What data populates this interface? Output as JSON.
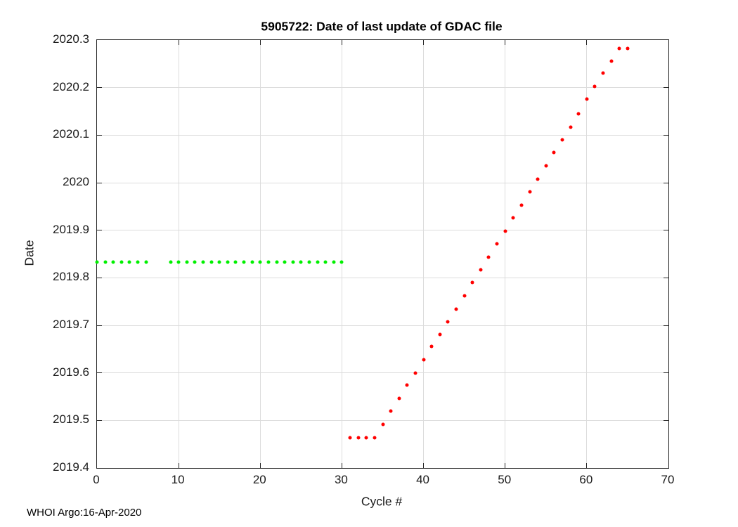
{
  "figure": {
    "footer": "WHOI Argo:16-Apr-2020"
  },
  "chart_data": {
    "type": "scatter",
    "title": "5905722: Date of last update of GDAC file",
    "xlabel": "Cycle #",
    "ylabel": "Date",
    "xlim": [
      0,
      70
    ],
    "ylim": [
      2019.4,
      2020.3
    ],
    "xticks": [
      0,
      10,
      20,
      30,
      40,
      50,
      60,
      70
    ],
    "xtick_labels": [
      "0",
      "10",
      "20",
      "30",
      "40",
      "50",
      "60",
      "70"
    ],
    "yticks": [
      2019.4,
      2019.5,
      2019.6,
      2019.7,
      2019.8,
      2019.9,
      2020.0,
      2020.1,
      2020.2,
      2020.3
    ],
    "ytick_labels": [
      "2019.4",
      "2019.5",
      "2019.6",
      "2019.7",
      "2019.8",
      "2019.9",
      "2020",
      "2020.1",
      "2020.2",
      "2020.3"
    ],
    "grid": true,
    "legend": "none",
    "marker": "dot",
    "series": [
      {
        "name": "green-dots",
        "color": "#00f000",
        "points": [
          [
            0,
            2019.833
          ],
          [
            1,
            2019.833
          ],
          [
            2,
            2019.833
          ],
          [
            3,
            2019.833
          ],
          [
            4,
            2019.833
          ],
          [
            5,
            2019.833
          ],
          [
            6,
            2019.833
          ],
          [
            9,
            2019.833
          ],
          [
            10,
            2019.833
          ],
          [
            11,
            2019.833
          ],
          [
            12,
            2019.833
          ],
          [
            13,
            2019.833
          ],
          [
            14,
            2019.833
          ],
          [
            15,
            2019.833
          ],
          [
            16,
            2019.833
          ],
          [
            17,
            2019.833
          ],
          [
            18,
            2019.833
          ],
          [
            19,
            2019.833
          ],
          [
            20,
            2019.833
          ],
          [
            21,
            2019.833
          ],
          [
            22,
            2019.833
          ],
          [
            23,
            2019.833
          ],
          [
            24,
            2019.833
          ],
          [
            25,
            2019.833
          ],
          [
            26,
            2019.833
          ],
          [
            27,
            2019.833
          ],
          [
            28,
            2019.833
          ],
          [
            29,
            2019.833
          ],
          [
            30,
            2019.833
          ]
        ]
      },
      {
        "name": "red-dots",
        "color": "#ff0000",
        "points": [
          [
            31,
            2019.464
          ],
          [
            32,
            2019.464
          ],
          [
            33,
            2019.464
          ],
          [
            34,
            2019.464
          ],
          [
            35,
            2019.491
          ],
          [
            36,
            2019.519
          ],
          [
            37,
            2019.546
          ],
          [
            38,
            2019.574
          ],
          [
            39,
            2019.6
          ],
          [
            40,
            2019.628
          ],
          [
            41,
            2019.655
          ],
          [
            42,
            2019.681
          ],
          [
            43,
            2019.707
          ],
          [
            44,
            2019.734
          ],
          [
            45,
            2019.762
          ],
          [
            46,
            2019.79
          ],
          [
            47,
            2019.817
          ],
          [
            48,
            2019.844
          ],
          [
            49,
            2019.871
          ],
          [
            50,
            2019.898
          ],
          [
            51,
            2019.926
          ],
          [
            52,
            2019.953
          ],
          [
            53,
            2019.981
          ],
          [
            54,
            2020.008
          ],
          [
            55,
            2020.035
          ],
          [
            56,
            2020.063
          ],
          [
            57,
            2020.09
          ],
          [
            58,
            2020.117
          ],
          [
            59,
            2020.145
          ],
          [
            60,
            2020.176
          ],
          [
            61,
            2020.203
          ],
          [
            62,
            2020.23
          ],
          [
            63,
            2020.256
          ],
          [
            64,
            2020.283
          ],
          [
            65,
            2020.283
          ]
        ]
      }
    ]
  }
}
